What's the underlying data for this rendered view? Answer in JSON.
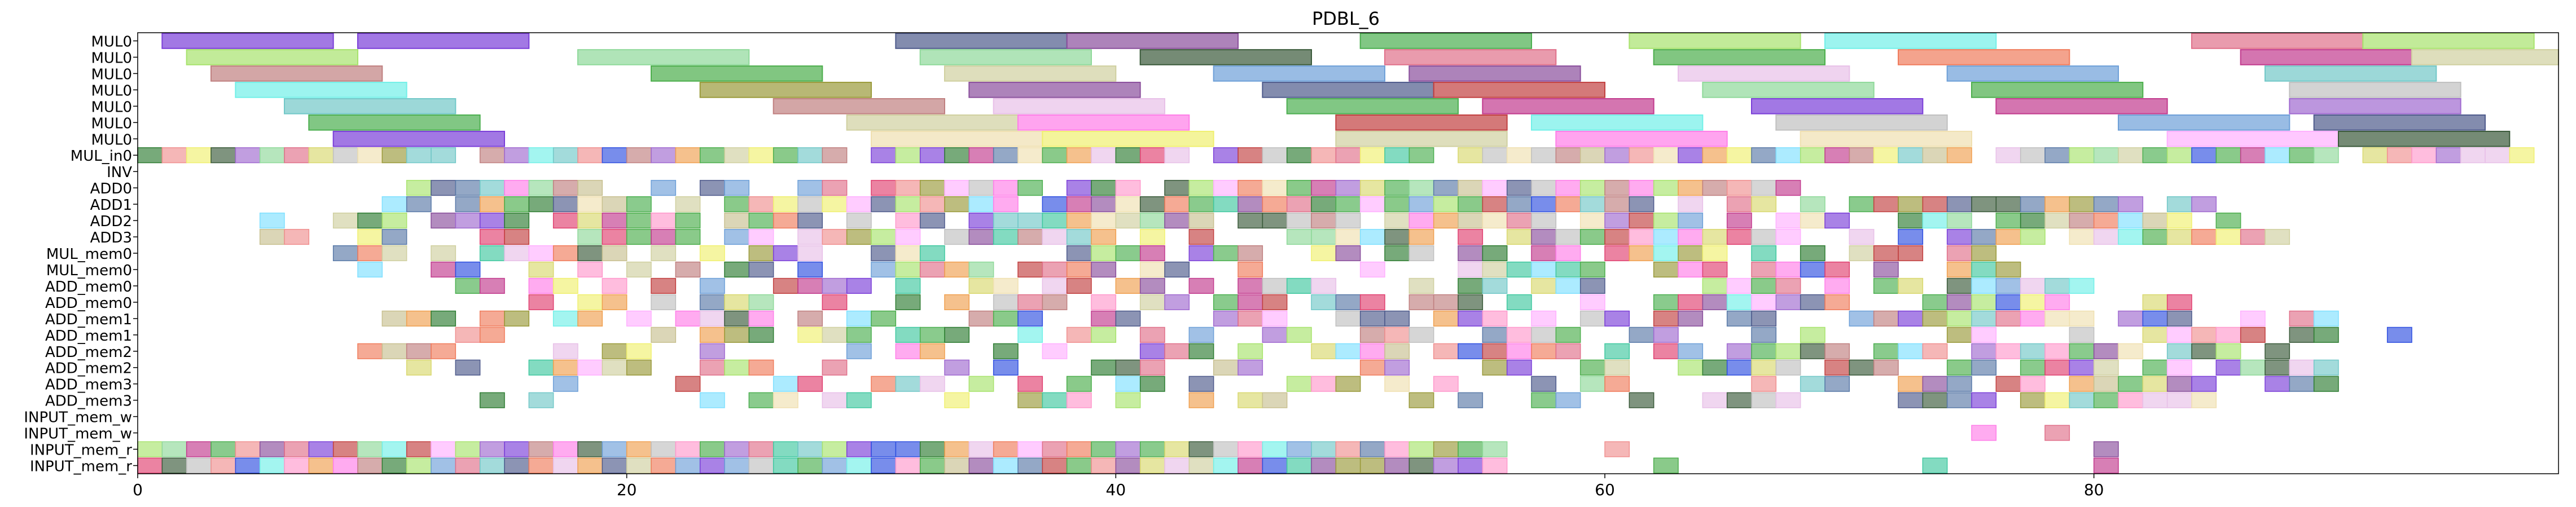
{
  "chart_data": {
    "type": "gantt",
    "title": "PDBL_6",
    "xlabel": "",
    "ylabel": "",
    "xlim": [
      0,
      99
    ],
    "x_ticks": [
      0,
      20,
      40,
      60,
      80
    ],
    "grid": false,
    "legend": "none",
    "rows": [
      "MUL0",
      "MUL0",
      "MUL0",
      "MUL0",
      "MUL0",
      "MUL0",
      "MUL0",
      "MUL_in0",
      "INV",
      "ADD0",
      "ADD1",
      "ADD2",
      "ADD3",
      "MUL_mem0",
      "MUL_mem0",
      "ADD_mem0",
      "ADD_mem0",
      "ADD_mem1",
      "ADD_mem1",
      "ADD_mem2",
      "ADD_mem2",
      "ADD_mem3",
      "ADD_mem3",
      "INPUT_mem_w",
      "INPUT_mem_w",
      "INPUT_mem_r",
      "INPUT_mem_r"
    ],
    "palette": [
      "#7b3fd8",
      "#4f5b8c",
      "#8a4f9c",
      "#4caf50",
      "#a8e36d",
      "#72f0e8",
      "#e0708a",
      "#c23b8e",
      "#d9d86f",
      "#f07c5c",
      "#2e7d32",
      "#c8c090",
      "#8fd99a",
      "#72c8c8",
      "#6ea0d8",
      "#c08080",
      "#9a9a3a",
      "#5a7aa8",
      "#e8c0e8",
      "#f0a050",
      "#40c8a0",
      "#d0d0a0",
      "#ff7ee8",
      "#c24040",
      "#f0f070",
      "#4cae4c",
      "#ff99cc",
      "#3050e0",
      "#c0c0c0",
      "#a06ad0",
      "#f0e0b0",
      "#3a5a3a",
      "#ffb0ff",
      "#80e0ff",
      "#e04070",
      "#f09090"
    ],
    "tasks": [
      {
        "row": 0,
        "start": 1,
        "end": 8,
        "c": 0
      },
      {
        "row": 0,
        "start": 9,
        "end": 16,
        "c": 0
      },
      {
        "row": 0,
        "start": 31,
        "end": 38,
        "c": 1
      },
      {
        "row": 0,
        "start": 38,
        "end": 45,
        "c": 2
      },
      {
        "row": 0,
        "start": 50,
        "end": 57,
        "c": 3
      },
      {
        "row": 0,
        "start": 61,
        "end": 68,
        "c": 4
      },
      {
        "row": 0,
        "start": 69,
        "end": 76,
        "c": 5
      },
      {
        "row": 0,
        "start": 84,
        "end": 91,
        "c": 6
      },
      {
        "row": 0,
        "start": 91,
        "end": 98,
        "c": 4
      },
      {
        "row": 1,
        "start": 2,
        "end": 9,
        "c": 4
      },
      {
        "row": 1,
        "start": 18,
        "end": 25,
        "c": 12
      },
      {
        "row": 1,
        "start": 32,
        "end": 39,
        "c": 12
      },
      {
        "row": 1,
        "start": 41,
        "end": 48,
        "c": 31
      },
      {
        "row": 1,
        "start": 51,
        "end": 58,
        "c": 6
      },
      {
        "row": 1,
        "start": 62,
        "end": 69,
        "c": 25
      },
      {
        "row": 1,
        "start": 72,
        "end": 79,
        "c": 9
      },
      {
        "row": 1,
        "start": 86,
        "end": 93,
        "c": 7
      },
      {
        "row": 1,
        "start": 93,
        "end": 99,
        "c": 21
      },
      {
        "row": 2,
        "start": 3,
        "end": 10,
        "c": 15
      },
      {
        "row": 2,
        "start": 21,
        "end": 28,
        "c": 25
      },
      {
        "row": 2,
        "start": 33,
        "end": 40,
        "c": 21
      },
      {
        "row": 2,
        "start": 44,
        "end": 51,
        "c": 14
      },
      {
        "row": 2,
        "start": 52,
        "end": 59,
        "c": 2
      },
      {
        "row": 2,
        "start": 63,
        "end": 70,
        "c": 18
      },
      {
        "row": 2,
        "start": 74,
        "end": 81,
        "c": 14
      },
      {
        "row": 2,
        "start": 87,
        "end": 94,
        "c": 13
      },
      {
        "row": 3,
        "start": 4,
        "end": 11,
        "c": 5
      },
      {
        "row": 3,
        "start": 23,
        "end": 30,
        "c": 16
      },
      {
        "row": 3,
        "start": 34,
        "end": 41,
        "c": 2
      },
      {
        "row": 3,
        "start": 46,
        "end": 53,
        "c": 1
      },
      {
        "row": 3,
        "start": 53,
        "end": 60,
        "c": 23
      },
      {
        "row": 3,
        "start": 64,
        "end": 71,
        "c": 12
      },
      {
        "row": 3,
        "start": 75,
        "end": 82,
        "c": 25
      },
      {
        "row": 3,
        "start": 88,
        "end": 95,
        "c": 28
      },
      {
        "row": 4,
        "start": 6,
        "end": 13,
        "c": 13
      },
      {
        "row": 4,
        "start": 26,
        "end": 33,
        "c": 15
      },
      {
        "row": 4,
        "start": 35,
        "end": 42,
        "c": 18
      },
      {
        "row": 4,
        "start": 47,
        "end": 54,
        "c": 3
      },
      {
        "row": 4,
        "start": 55,
        "end": 62,
        "c": 7
      },
      {
        "row": 4,
        "start": 66,
        "end": 73,
        "c": 0
      },
      {
        "row": 4,
        "start": 76,
        "end": 83,
        "c": 7
      },
      {
        "row": 4,
        "start": 88,
        "end": 95,
        "c": 29
      },
      {
        "row": 5,
        "start": 7,
        "end": 14,
        "c": 3
      },
      {
        "row": 5,
        "start": 29,
        "end": 36,
        "c": 21
      },
      {
        "row": 5,
        "start": 36,
        "end": 43,
        "c": 22
      },
      {
        "row": 5,
        "start": 49,
        "end": 56,
        "c": 23
      },
      {
        "row": 5,
        "start": 57,
        "end": 64,
        "c": 5
      },
      {
        "row": 5,
        "start": 67,
        "end": 74,
        "c": 28
      },
      {
        "row": 5,
        "start": 81,
        "end": 88,
        "c": 14
      },
      {
        "row": 5,
        "start": 89,
        "end": 96,
        "c": 1
      },
      {
        "row": 6,
        "start": 8,
        "end": 15,
        "c": 0
      },
      {
        "row": 6,
        "start": 30,
        "end": 37,
        "c": 30
      },
      {
        "row": 6,
        "start": 37,
        "end": 44,
        "c": 24
      },
      {
        "row": 6,
        "start": 49,
        "end": 56,
        "c": 21
      },
      {
        "row": 6,
        "start": 58,
        "end": 65,
        "c": 22
      },
      {
        "row": 6,
        "start": 68,
        "end": 75,
        "c": 30
      },
      {
        "row": 6,
        "start": 83,
        "end": 90,
        "c": 32
      },
      {
        "row": 6,
        "start": 90,
        "end": 97,
        "c": 31
      }
    ]
  }
}
